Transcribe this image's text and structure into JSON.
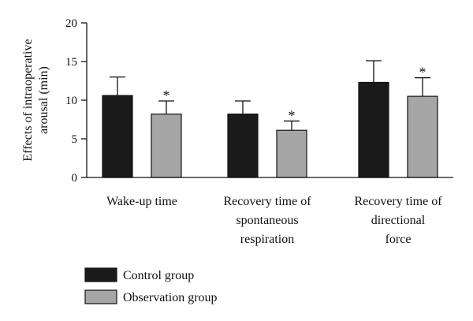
{
  "chart_data": {
    "type": "bar",
    "ylabel": "Effects of intraoperative arousal (min)",
    "ylabel_lines": [
      "Effects of intraoperative",
      "arousal (min)"
    ],
    "ylim": [
      0,
      20
    ],
    "yticks": [
      "0",
      "5",
      "10",
      "15",
      "20"
    ],
    "categories": [
      "Wake-up time",
      "Recovery time of spontaneous respiration",
      "Recovery time of directional force"
    ],
    "category_lines": [
      [
        "Wake-up time"
      ],
      [
        "Recovery time of",
        "spontaneous",
        "respiration"
      ],
      [
        "Recovery time of",
        "directional",
        "force"
      ]
    ],
    "series": [
      {
        "name": "Control group",
        "color": "#1a1a1a",
        "values": [
          10.6,
          8.2,
          12.3
        ],
        "error": [
          2.4,
          1.7,
          2.8
        ],
        "significance": [
          "",
          "",
          ""
        ]
      },
      {
        "name": "Observation group",
        "color": "#a6a6a6",
        "values": [
          8.2,
          6.1,
          10.5
        ],
        "error": [
          1.7,
          1.2,
          2.4
        ],
        "significance": [
          "*",
          "*",
          "*"
        ]
      }
    ],
    "legend_position": "bottom-left",
    "grid": false
  }
}
